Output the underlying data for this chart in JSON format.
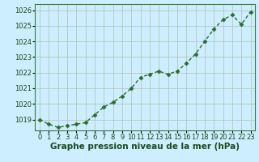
{
  "x": [
    0,
    1,
    2,
    3,
    4,
    5,
    6,
    7,
    8,
    9,
    10,
    11,
    12,
    13,
    14,
    15,
    16,
    17,
    18,
    19,
    20,
    21,
    22,
    23
  ],
  "y": [
    1019.0,
    1018.7,
    1018.5,
    1018.6,
    1018.7,
    1018.8,
    1019.3,
    1019.8,
    1020.1,
    1020.5,
    1021.0,
    1021.7,
    1021.9,
    1022.1,
    1021.9,
    1022.1,
    1022.6,
    1023.2,
    1024.0,
    1024.8,
    1025.4,
    1025.7,
    1025.1,
    1025.9
  ],
  "line_color": "#2d6a2d",
  "marker": "D",
  "marker_size": 2.5,
  "bg_color": "#cceeff",
  "grid_color": "#b0c0b0",
  "xlabel": "Graphe pression niveau de la mer (hPa)",
  "xlabel_fontsize": 7.5,
  "xlabel_color": "#1a4a1a",
  "xlabel_bold": true,
  "ylim": [
    1018.3,
    1026.4
  ],
  "yticks": [
    1019,
    1020,
    1021,
    1022,
    1023,
    1024,
    1025,
    1026
  ],
  "xticks": [
    0,
    1,
    2,
    3,
    4,
    5,
    6,
    7,
    8,
    9,
    10,
    11,
    12,
    13,
    14,
    15,
    16,
    17,
    18,
    19,
    20,
    21,
    22,
    23
  ],
  "tick_label_color": "#1a4a1a",
  "tick_label_fontsize": 6.0,
  "line_width": 1.0,
  "spine_color": "#3a7a3a"
}
